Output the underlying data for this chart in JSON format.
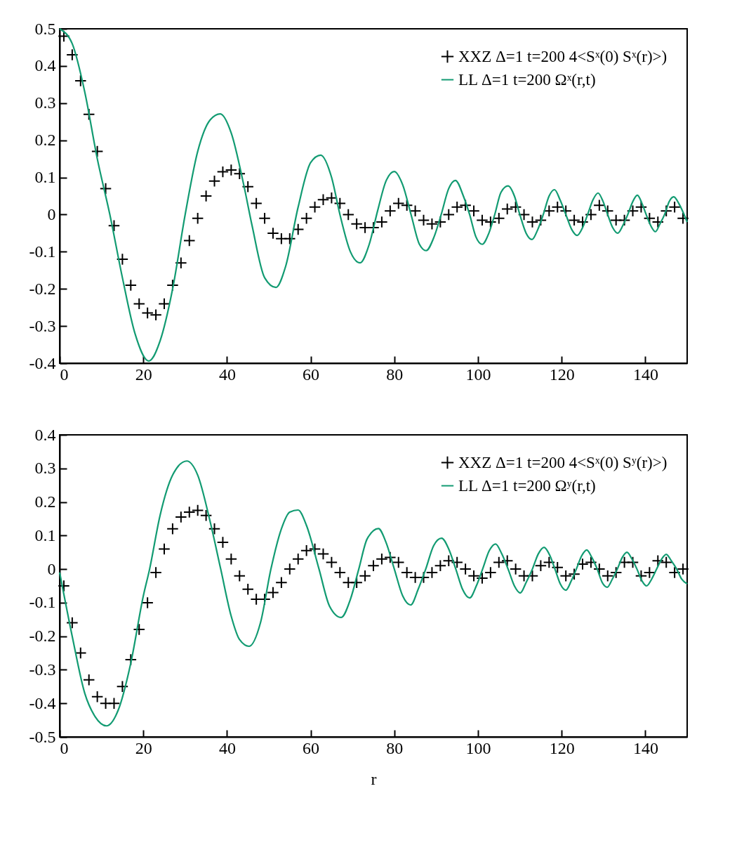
{
  "chart_data": [
    {
      "type": "line",
      "xlim": [
        0,
        150
      ],
      "xticks": [
        0,
        20,
        40,
        60,
        80,
        100,
        120,
        140
      ],
      "ylim": [
        -0.4,
        0.5
      ],
      "yticks": [
        -0.4,
        -0.3,
        -0.2,
        -0.1,
        0,
        0.1,
        0.2,
        0.3,
        0.4,
        0.5
      ],
      "legend": "top right",
      "series": [
        {
          "name": "XXZ Δ=1 t=200 4<Sˣ(0) Sˣ(r)>)",
          "type": "scatter",
          "marker": "cross",
          "color": "#000000",
          "x": [
            1,
            3,
            5,
            7,
            9,
            11,
            13,
            15,
            17,
            19,
            21,
            23,
            25,
            27,
            29,
            31,
            33,
            35,
            37,
            39,
            41,
            43,
            45,
            47,
            49,
            51,
            53,
            55,
            57,
            59,
            61,
            63,
            65,
            67,
            69,
            71,
            73,
            75,
            77,
            79,
            81,
            83,
            85,
            87,
            89,
            91,
            93,
            95,
            97,
            99,
            101,
            103,
            105,
            107,
            109,
            111,
            113,
            115,
            117,
            119,
            121,
            123,
            125,
            127,
            129,
            131,
            133,
            135,
            137,
            139,
            141,
            143,
            145,
            147,
            149
          ],
          "values": [
            0.48,
            0.43,
            0.36,
            0.27,
            0.17,
            0.07,
            -0.03,
            -0.12,
            -0.19,
            -0.24,
            -0.265,
            -0.27,
            -0.24,
            -0.19,
            -0.13,
            -0.07,
            -0.01,
            0.05,
            0.09,
            0.115,
            0.12,
            0.11,
            0.075,
            0.03,
            -0.01,
            -0.05,
            -0.065,
            -0.065,
            -0.04,
            -0.01,
            0.02,
            0.04,
            0.045,
            0.03,
            0,
            -0.025,
            -0.035,
            -0.035,
            -0.02,
            0.01,
            0.03,
            0.025,
            0.01,
            -0.015,
            -0.025,
            -0.02,
            0,
            0.02,
            0.025,
            0.01,
            -0.015,
            -0.02,
            -0.01,
            0.015,
            0.02,
            0,
            -0.02,
            -0.015,
            0.01,
            0.02,
            0.01,
            -0.015,
            -0.02,
            0,
            0.025,
            0.01,
            -0.015,
            -0.015,
            0.01,
            0.02,
            -0.01,
            -0.02,
            0.01,
            0.02,
            -0.01
          ]
        },
        {
          "name": "LL Δ=1 t=200 Ωˣ(r,t)",
          "type": "line",
          "color": "#129b72",
          "x": [
            0,
            3,
            6,
            9,
            12,
            15,
            18,
            21.3,
            24,
            27,
            30,
            33,
            36,
            38.4,
            41,
            44,
            46,
            49,
            51.7,
            54,
            57,
            60,
            62.4,
            65,
            67,
            69.5,
            71.8,
            74,
            76,
            78,
            80,
            82,
            84,
            86,
            87.6,
            89.5,
            91.2,
            93,
            94.6,
            96.5,
            98,
            99.5,
            101,
            102.6,
            104,
            105.5,
            107.2,
            108.7,
            110,
            111.5,
            112.9,
            114.3,
            115.6,
            117,
            118.3,
            119.6,
            121,
            122.4,
            123.7,
            125,
            126.2,
            127.5,
            128.7,
            129.9,
            131,
            132.2,
            133.4,
            134.6,
            135.8,
            137,
            138.1,
            139.2,
            140.2,
            141.3,
            142.4,
            143.5,
            144.6,
            145.7,
            146.8,
            148,
            150
          ],
          "values": [
            0.5,
            0.46,
            0.33,
            0.15,
            0,
            -0.17,
            -0.32,
            -0.394,
            -0.34,
            -0.2,
            0,
            0.17,
            0.255,
            0.271,
            0.22,
            0.08,
            -0.03,
            -0.17,
            -0.196,
            -0.14,
            0.02,
            0.14,
            0.16,
            0.1,
            0,
            -0.1,
            -0.13,
            -0.08,
            0.01,
            0.09,
            0.116,
            0.08,
            0,
            -0.08,
            -0.097,
            -0.06,
            0,
            0.07,
            0.092,
            0.05,
            0,
            -0.06,
            -0.08,
            -0.05,
            0,
            0.06,
            0.077,
            0.05,
            0,
            -0.05,
            -0.067,
            -0.04,
            0,
            0.05,
            0.067,
            0.04,
            0,
            -0.04,
            -0.056,
            -0.035,
            0,
            0.04,
            0.058,
            0.035,
            0,
            -0.035,
            -0.05,
            -0.03,
            0,
            0.035,
            0.052,
            0.03,
            0,
            -0.03,
            -0.046,
            -0.025,
            0,
            0.035,
            0.048,
            0.03,
            -0.02
          ]
        }
      ]
    },
    {
      "type": "line",
      "xlabel": "r",
      "xlim": [
        0,
        150
      ],
      "xticks": [
        0,
        20,
        40,
        60,
        80,
        100,
        120,
        140
      ],
      "ylim": [
        -0.5,
        0.4
      ],
      "yticks": [
        -0.5,
        -0.4,
        -0.3,
        -0.2,
        -0.1,
        0,
        0.1,
        0.2,
        0.3,
        0.4
      ],
      "legend": "top right",
      "series": [
        {
          "name": "XXZ Δ=1 t=200 4<Sˣ(0) Sʸ(r)>)",
          "type": "scatter",
          "marker": "cross",
          "color": "#000000",
          "x": [
            1,
            3,
            5,
            7,
            9,
            11,
            13,
            15,
            17,
            19,
            21,
            23,
            25,
            27,
            29,
            31,
            33,
            35,
            37,
            39,
            41,
            43,
            45,
            47,
            49,
            51,
            53,
            55,
            57,
            59,
            61,
            63,
            65,
            67,
            69,
            71,
            73,
            75,
            77,
            79,
            81,
            83,
            85,
            87,
            89,
            91,
            93,
            95,
            97,
            99,
            101,
            103,
            105,
            107,
            109,
            111,
            113,
            115,
            117,
            119,
            121,
            123,
            125,
            127,
            129,
            131,
            133,
            135,
            137,
            139,
            141,
            143,
            145,
            147,
            149
          ],
          "values": [
            -0.05,
            -0.16,
            -0.25,
            -0.33,
            -0.38,
            -0.4,
            -0.4,
            -0.35,
            -0.27,
            -0.18,
            -0.1,
            -0.01,
            0.06,
            0.12,
            0.155,
            0.17,
            0.175,
            0.16,
            0.12,
            0.08,
            0.03,
            -0.02,
            -0.06,
            -0.09,
            -0.09,
            -0.07,
            -0.04,
            0,
            0.03,
            0.055,
            0.06,
            0.045,
            0.02,
            -0.01,
            -0.04,
            -0.04,
            -0.02,
            0.01,
            0.03,
            0.035,
            0.02,
            -0.01,
            -0.025,
            -0.025,
            -0.01,
            0.01,
            0.025,
            0.02,
            0,
            -0.02,
            -0.027,
            -0.01,
            0.02,
            0.025,
            0,
            -0.02,
            -0.02,
            0.01,
            0.02,
            0.005,
            -0.02,
            -0.015,
            0.015,
            0.02,
            0,
            -0.02,
            -0.01,
            0.02,
            0.02,
            -0.02,
            -0.01,
            0.025,
            0.02,
            -0.01,
            0
          ]
        },
        {
          "name": "LL Δ=1 t=200 Ωʸ(r,t)",
          "type": "line",
          "color": "#129b72",
          "x": [
            0,
            3,
            6,
            8.5,
            11.2,
            14,
            17,
            20,
            21.5,
            24,
            27,
            30.4,
            33,
            36,
            38.5,
            41,
            43,
            45.3,
            48,
            50.5,
            53,
            55,
            57,
            59,
            62,
            64.5,
            67.3,
            69.5,
            71.5,
            73.5,
            76.2,
            78,
            80,
            82,
            83.9,
            85.7,
            87.5,
            89.4,
            91.3,
            93,
            94.7,
            96.3,
            98,
            99.6,
            101.1,
            102.7,
            104.2,
            105.7,
            107.2,
            108.7,
            110.1,
            111.5,
            113,
            114.4,
            115.8,
            117.2,
            118.4,
            119.7,
            121,
            122.3,
            123.5,
            124.8,
            126,
            127.2,
            128.5,
            129.7,
            130.9,
            132.1,
            133.3,
            134.5,
            135.6,
            136.8,
            138,
            139.2,
            140.3,
            141.5,
            142.7,
            143.9,
            145,
            146.2,
            147.5,
            148.7,
            150
          ],
          "values": [
            -0.01,
            -0.2,
            -0.37,
            -0.44,
            -0.467,
            -0.42,
            -0.28,
            -0.08,
            0,
            0.16,
            0.28,
            0.322,
            0.28,
            0.14,
            0,
            -0.14,
            -0.21,
            -0.23,
            -0.16,
            0,
            0.12,
            0.17,
            0.176,
            0.13,
            0,
            -0.11,
            -0.144,
            -0.09,
            0,
            0.09,
            0.121,
            0.08,
            0,
            -0.08,
            -0.107,
            -0.06,
            0,
            0.07,
            0.092,
            0.06,
            0,
            -0.06,
            -0.086,
            -0.05,
            0,
            0.055,
            0.075,
            0.045,
            0,
            -0.05,
            -0.071,
            -0.04,
            0,
            0.045,
            0.065,
            0.04,
            0,
            -0.045,
            -0.063,
            -0.035,
            0,
            0.04,
            0.057,
            0.035,
            0,
            -0.04,
            -0.054,
            -0.03,
            0,
            0.035,
            0.05,
            0.03,
            0,
            -0.035,
            -0.05,
            -0.03,
            0,
            0.03,
            0.044,
            0.025,
            0,
            -0.03,
            -0.044
          ]
        }
      ]
    }
  ]
}
